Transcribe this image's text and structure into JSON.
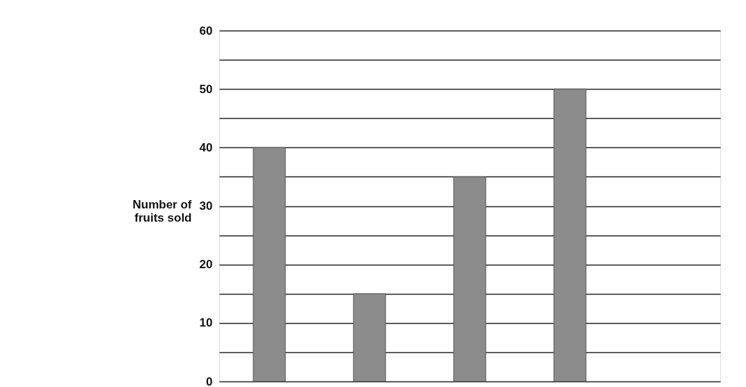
{
  "chart_data": {
    "type": "bar",
    "ylabel": "Number of\nfruits sold",
    "categories": [
      null,
      null,
      null,
      null,
      null
    ],
    "values": [
      40,
      15,
      35,
      50,
      null
    ],
    "color": "#8c8c8c",
    "ylim": [
      0,
      60
    ],
    "yticks": [
      0,
      {
        "value": 5,
        "label": null
      },
      10,
      {
        "value": 15,
        "label": null
      },
      20,
      {
        "value": 25,
        "label": null
      },
      30,
      {
        "value": 35,
        "label": null
      },
      40,
      {
        "value": 45,
        "label": null
      },
      50,
      {
        "value": 55,
        "label": null
      },
      60
    ],
    "grid": "y",
    "tick_labels": "y"
  }
}
